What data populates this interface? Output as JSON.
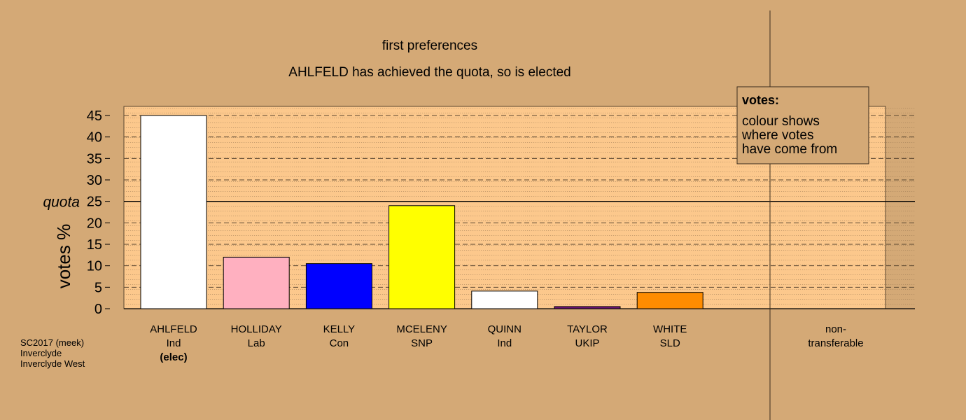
{
  "chart_data": {
    "type": "bar",
    "title": "first preferences",
    "subtitle": "AHLFELD has achieved the quota, so is elected",
    "ylabel": "votes %",
    "ylim": [
      0,
      45
    ],
    "yticks": [
      "0",
      "5",
      "10",
      "15",
      "20",
      "25",
      "30",
      "35",
      "40",
      "45"
    ],
    "quota_value": 25,
    "quota_label": "quota",
    "categories": [
      {
        "name": "AHLFELD",
        "party": "Ind",
        "note": "(elec)",
        "value": 45.0,
        "color": "#ffffff"
      },
      {
        "name": "HOLLIDAY",
        "party": "Lab",
        "note": "",
        "value": 12.0,
        "color": "#ffb0c0"
      },
      {
        "name": "KELLY",
        "party": "Con",
        "note": "",
        "value": 10.5,
        "color": "#0000ff"
      },
      {
        "name": "MCELENY",
        "party": "SNP",
        "note": "",
        "value": 24.0,
        "color": "#ffff00"
      },
      {
        "name": "QUINN",
        "party": "Ind",
        "note": "",
        "value": 4.1,
        "color": "#ffffff"
      },
      {
        "name": "TAYLOR",
        "party": "UKIP",
        "note": "",
        "value": 0.5,
        "color": "#70147a"
      },
      {
        "name": "WHITE",
        "party": "SLD",
        "note": "",
        "value": 3.8,
        "color": "#ff8c00"
      }
    ],
    "nontransferable": {
      "label_line1": "non-",
      "label_line2": "transferable",
      "value": 0
    },
    "legend": {
      "title": "votes:",
      "lines": [
        "colour shows",
        "where votes",
        "have come from"
      ],
      "placement": "top-right"
    },
    "footer": [
      "SC2017 (meek)",
      "Inverclyde",
      "Inverclyde West"
    ],
    "colors": {
      "background": "#d4a976",
      "plot_area": "#fcc88c"
    }
  }
}
